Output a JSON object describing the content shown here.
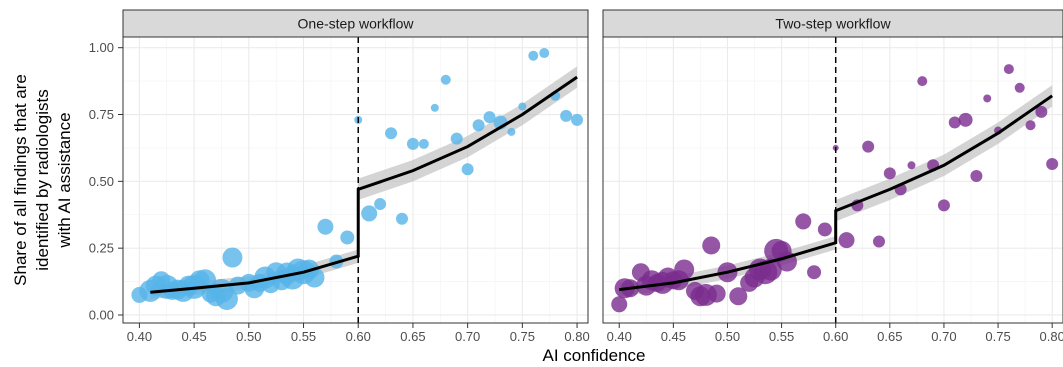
{
  "chart_data": {
    "type": "scatter",
    "xlabel": "AI confidence",
    "ylabel_lines": [
      "Share of all findings that are",
      "identified by radiologists",
      "with AI assistance"
    ],
    "xlim": [
      0.385,
      0.81
    ],
    "ylim": [
      -0.03,
      1.04
    ],
    "x_ticks": [
      0.4,
      0.45,
      0.5,
      0.55,
      0.6,
      0.65,
      0.7,
      0.75,
      0.8
    ],
    "x_tick_labels": [
      "0.40",
      "0.45",
      "0.50",
      "0.55",
      "0.60",
      "0.65",
      "0.70",
      "0.75",
      "0.80"
    ],
    "y_ticks": [
      0.0,
      0.25,
      0.5,
      0.75,
      1.0
    ],
    "y_tick_labels": [
      "0.00",
      "0.25",
      "0.50",
      "0.75",
      "1.00"
    ],
    "threshold": 0.6,
    "grid": true,
    "panels": [
      {
        "title": "One-step workflow",
        "color": "#56B4E9",
        "points": [
          [
            0.4,
            0.075,
            8
          ],
          [
            0.41,
            0.09,
            11
          ],
          [
            0.415,
            0.11,
            10
          ],
          [
            0.42,
            0.13,
            9
          ],
          [
            0.425,
            0.105,
            12
          ],
          [
            0.43,
            0.09,
            9
          ],
          [
            0.435,
            0.095,
            10
          ],
          [
            0.44,
            0.09,
            11
          ],
          [
            0.445,
            0.11,
            10
          ],
          [
            0.45,
            0.105,
            12
          ],
          [
            0.455,
            0.13,
            10
          ],
          [
            0.46,
            0.13,
            11
          ],
          [
            0.465,
            0.08,
            9
          ],
          [
            0.47,
            0.07,
            10
          ],
          [
            0.475,
            0.09,
            12
          ],
          [
            0.48,
            0.06,
            11
          ],
          [
            0.485,
            0.215,
            10
          ],
          [
            0.49,
            0.11,
            9
          ],
          [
            0.5,
            0.12,
            9
          ],
          [
            0.505,
            0.1,
            10
          ],
          [
            0.51,
            0.12,
            9
          ],
          [
            0.515,
            0.14,
            11
          ],
          [
            0.52,
            0.115,
            9
          ],
          [
            0.525,
            0.16,
            10
          ],
          [
            0.53,
            0.13,
            10
          ],
          [
            0.535,
            0.155,
            11
          ],
          [
            0.54,
            0.14,
            12
          ],
          [
            0.545,
            0.17,
            11
          ],
          [
            0.55,
            0.16,
            12
          ],
          [
            0.555,
            0.17,
            10
          ],
          [
            0.56,
            0.14,
            10
          ],
          [
            0.57,
            0.33,
            8
          ],
          [
            0.58,
            0.2,
            7
          ],
          [
            0.59,
            0.29,
            7
          ],
          [
            0.6,
            0.73,
            4
          ],
          [
            0.61,
            0.38,
            8
          ],
          [
            0.62,
            0.415,
            6
          ],
          [
            0.63,
            0.68,
            6
          ],
          [
            0.64,
            0.36,
            6
          ],
          [
            0.65,
            0.64,
            6
          ],
          [
            0.66,
            0.64,
            5
          ],
          [
            0.67,
            0.775,
            4
          ],
          [
            0.68,
            0.88,
            5
          ],
          [
            0.69,
            0.66,
            6
          ],
          [
            0.7,
            0.545,
            6
          ],
          [
            0.71,
            0.71,
            6
          ],
          [
            0.72,
            0.74,
            6
          ],
          [
            0.73,
            0.72,
            7
          ],
          [
            0.74,
            0.685,
            4
          ],
          [
            0.75,
            0.78,
            4
          ],
          [
            0.76,
            0.97,
            5
          ],
          [
            0.77,
            0.98,
            5
          ],
          [
            0.78,
            0.82,
            5
          ],
          [
            0.79,
            0.745,
            6
          ],
          [
            0.8,
            0.73,
            6
          ]
        ],
        "fit_left": [
          [
            0.41,
            0.085
          ],
          [
            0.45,
            0.1
          ],
          [
            0.5,
            0.12
          ],
          [
            0.55,
            0.16
          ],
          [
            0.6,
            0.22
          ]
        ],
        "fit_right": [
          [
            0.6,
            0.47
          ],
          [
            0.65,
            0.54
          ],
          [
            0.7,
            0.63
          ],
          [
            0.75,
            0.75
          ],
          [
            0.8,
            0.89
          ]
        ]
      },
      {
        "title": "Two-step workflow",
        "color": "#7B2D8E",
        "points": [
          [
            0.4,
            0.04,
            8
          ],
          [
            0.405,
            0.1,
            10
          ],
          [
            0.41,
            0.1,
            9
          ],
          [
            0.42,
            0.16,
            9
          ],
          [
            0.425,
            0.11,
            10
          ],
          [
            0.43,
            0.13,
            10
          ],
          [
            0.435,
            0.12,
            9
          ],
          [
            0.44,
            0.12,
            11
          ],
          [
            0.445,
            0.14,
            10
          ],
          [
            0.45,
            0.13,
            9
          ],
          [
            0.455,
            0.13,
            10
          ],
          [
            0.46,
            0.17,
            10
          ],
          [
            0.47,
            0.09,
            9
          ],
          [
            0.475,
            0.07,
            10
          ],
          [
            0.48,
            0.075,
            11
          ],
          [
            0.485,
            0.26,
            9
          ],
          [
            0.49,
            0.08,
            9
          ],
          [
            0.5,
            0.16,
            10
          ],
          [
            0.51,
            0.07,
            9
          ],
          [
            0.52,
            0.12,
            9
          ],
          [
            0.525,
            0.14,
            10
          ],
          [
            0.53,
            0.17,
            11
          ],
          [
            0.535,
            0.16,
            12
          ],
          [
            0.54,
            0.17,
            11
          ],
          [
            0.545,
            0.24,
            12
          ],
          [
            0.55,
            0.24,
            10
          ],
          [
            0.555,
            0.2,
            10
          ],
          [
            0.57,
            0.35,
            8
          ],
          [
            0.58,
            0.16,
            7
          ],
          [
            0.59,
            0.32,
            7
          ],
          [
            0.6,
            0.625,
            3
          ],
          [
            0.61,
            0.28,
            8
          ],
          [
            0.62,
            0.41,
            6
          ],
          [
            0.63,
            0.63,
            6
          ],
          [
            0.64,
            0.275,
            6
          ],
          [
            0.65,
            0.53,
            6
          ],
          [
            0.66,
            0.47,
            6
          ],
          [
            0.67,
            0.56,
            4
          ],
          [
            0.68,
            0.875,
            5
          ],
          [
            0.69,
            0.56,
            6
          ],
          [
            0.7,
            0.41,
            6
          ],
          [
            0.71,
            0.72,
            6
          ],
          [
            0.72,
            0.73,
            7
          ],
          [
            0.73,
            0.52,
            6
          ],
          [
            0.74,
            0.81,
            4
          ],
          [
            0.75,
            0.69,
            4
          ],
          [
            0.76,
            0.92,
            5
          ],
          [
            0.77,
            0.85,
            5
          ],
          [
            0.78,
            0.71,
            5
          ],
          [
            0.79,
            0.76,
            6
          ],
          [
            0.8,
            0.565,
            6
          ]
        ],
        "fit_left": [
          [
            0.4,
            0.095
          ],
          [
            0.45,
            0.12
          ],
          [
            0.5,
            0.16
          ],
          [
            0.55,
            0.21
          ],
          [
            0.6,
            0.27
          ]
        ],
        "fit_right": [
          [
            0.6,
            0.39
          ],
          [
            0.65,
            0.47
          ],
          [
            0.7,
            0.56
          ],
          [
            0.75,
            0.68
          ],
          [
            0.8,
            0.82
          ]
        ]
      }
    ]
  }
}
